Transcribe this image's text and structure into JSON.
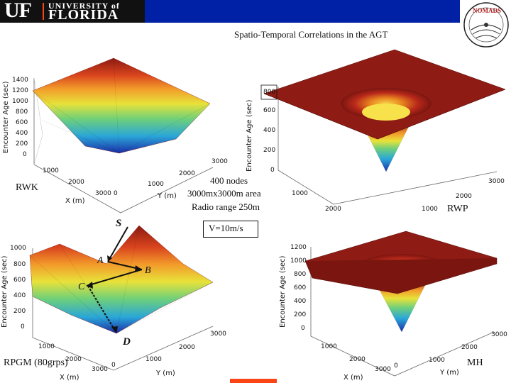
{
  "header": {
    "logo_uf": "UF",
    "logo_university": "UNIVERSITY of",
    "logo_florida": "FLORIDA",
    "badge_text": "NOMADS",
    "colors": {
      "blue_bar": "#0021a5",
      "orange": "#fa4616",
      "dark": "#111111"
    }
  },
  "title": "Spatio-Temporal Correlations in the AGT",
  "info": {
    "nodes": "400 nodes",
    "area": "3000mx3000m area",
    "radio": "Radio range 250m",
    "velocity": "V=10m/s"
  },
  "plots": [
    {
      "label": "RWK",
      "z_label": "Encounter Age (sec)",
      "x_label": "X (m)",
      "y_label": "Y (m)",
      "z_ticks": [
        "0",
        "200",
        "400",
        "600",
        "800",
        "1000",
        "1200",
        "1400"
      ],
      "x_ticks": [
        "0",
        "1000",
        "2000",
        "3000"
      ],
      "y_ticks": [
        "0",
        "1000",
        "2000",
        "3000"
      ]
    },
    {
      "label": "RWP",
      "z_label": "Encounter Age (sec)",
      "x_ticks": [
        "1000",
        "2000"
      ],
      "y_ticks": [
        "1000",
        "2000",
        "3000"
      ],
      "z_ticks": [
        "0",
        "200",
        "400",
        "600",
        "800"
      ]
    },
    {
      "label": "RPGM (80grps)",
      "z_label": "Encounter Age (sec)",
      "x_label": "X (m)",
      "y_label": "Y (m)",
      "z_ticks": [
        "0",
        "200",
        "400",
        "600",
        "800",
        "1000"
      ],
      "x_ticks": [
        "0",
        "1000",
        "2000",
        "3000"
      ],
      "y_ticks": [
        "0",
        "1000",
        "2000",
        "3000"
      ],
      "points": {
        "s": "S",
        "a": "A",
        "b": "B",
        "c": "C",
        "d": "D"
      }
    },
    {
      "label": "MH",
      "z_label": "Encounter Age (sec)",
      "x_label": "X (m)",
      "y_label": "Y (m)",
      "z_ticks": [
        "0",
        "200",
        "400",
        "600",
        "800",
        "1000",
        "1200"
      ],
      "x_ticks": [
        "0",
        "1000",
        "2000",
        "3000"
      ],
      "y_ticks": [
        "0",
        "1000",
        "2000",
        "3000"
      ]
    }
  ]
}
